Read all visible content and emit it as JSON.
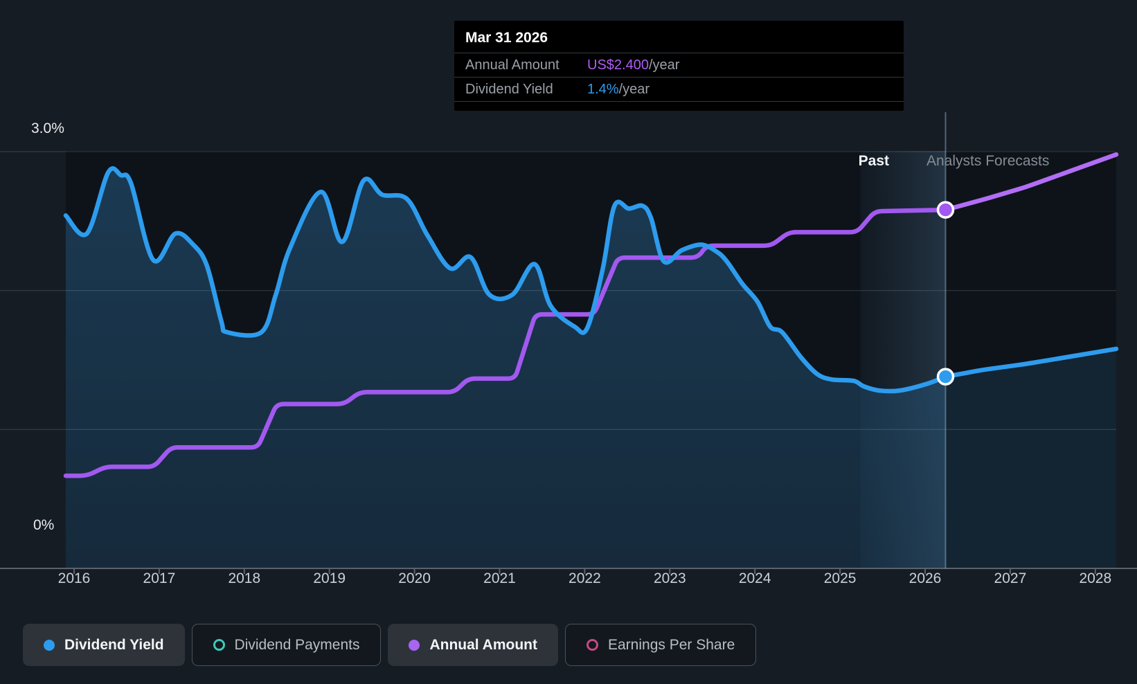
{
  "tooltip": {
    "date": "Mar 31 2026",
    "rows": [
      {
        "label": "Annual Amount",
        "value": "US$2.400",
        "suffix": "/year",
        "color": "#b05df5"
      },
      {
        "label": "Dividend Yield",
        "value": "1.4%",
        "suffix": "/year",
        "color": "#2d9cee"
      }
    ]
  },
  "annotations": {
    "past": "Past",
    "forecast": "Analysts Forecasts"
  },
  "y_axis": {
    "top_label": "3.0%",
    "zero_label": "0%"
  },
  "x_axis": {
    "years": [
      "2016",
      "2017",
      "2018",
      "2019",
      "2020",
      "2021",
      "2022",
      "2023",
      "2024",
      "2025",
      "2026",
      "2027",
      "2028"
    ]
  },
  "legend": [
    {
      "label": "Dividend Yield",
      "marker": "dot",
      "color": "#2d9cee",
      "active": true
    },
    {
      "label": "Dividend Payments",
      "marker": "ring",
      "color": "#3ec9b8",
      "active": false
    },
    {
      "label": "Annual Amount",
      "marker": "dot",
      "color": "#a765f2",
      "active": true
    },
    {
      "label": "Earnings Per Share",
      "marker": "ring",
      "color": "#c44a82",
      "active": false
    }
  ],
  "colors": {
    "yield_line": "#2d9cee",
    "amount_line": "#a259f0",
    "page_bg": "#161c24",
    "plot_bg": "#0e1319",
    "tooltip_bg": "#000000"
  },
  "chart_data": {
    "type": "line",
    "x_range": [
      2015.9,
      2028.25
    ],
    "y_left": {
      "unit": "%",
      "min": 0,
      "max": 3,
      "gridlines": [
        3.0,
        2.0,
        1.0,
        0.0
      ]
    },
    "amount_unit": "US$/year",
    "past_forecast_boundary": 2026.24,
    "past_band": [
      2025.24,
      2026.24
    ],
    "legend_position": "bottom",
    "series": [
      {
        "name": "Dividend Yield",
        "unit": "%",
        "color": "#2d9cee",
        "past": [
          [
            2015.9,
            2.54
          ],
          [
            2016.15,
            2.41
          ],
          [
            2016.4,
            2.85
          ],
          [
            2016.55,
            2.83
          ],
          [
            2016.67,
            2.77
          ],
          [
            2016.93,
            2.22
          ],
          [
            2017.19,
            2.41
          ],
          [
            2017.4,
            2.33
          ],
          [
            2017.56,
            2.18
          ],
          [
            2017.73,
            1.78
          ],
          [
            2017.8,
            1.7
          ],
          [
            2018.2,
            1.7
          ],
          [
            2018.37,
            1.97
          ],
          [
            2018.54,
            2.31
          ],
          [
            2018.9,
            2.71
          ],
          [
            2019.15,
            2.35
          ],
          [
            2019.4,
            2.79
          ],
          [
            2019.62,
            2.69
          ],
          [
            2019.91,
            2.66
          ],
          [
            2020.15,
            2.4
          ],
          [
            2020.42,
            2.16
          ],
          [
            2020.66,
            2.24
          ],
          [
            2020.88,
            1.97
          ],
          [
            2021.15,
            1.97
          ],
          [
            2021.41,
            2.19
          ],
          [
            2021.6,
            1.89
          ],
          [
            2021.88,
            1.74
          ],
          [
            2022.03,
            1.73
          ],
          [
            2022.21,
            2.15
          ],
          [
            2022.35,
            2.61
          ],
          [
            2022.52,
            2.59
          ],
          [
            2022.68,
            2.61
          ],
          [
            2022.78,
            2.52
          ],
          [
            2022.93,
            2.21
          ],
          [
            2023.14,
            2.29
          ],
          [
            2023.37,
            2.33
          ],
          [
            2023.55,
            2.28
          ],
          [
            2023.67,
            2.21
          ],
          [
            2023.85,
            2.05
          ],
          [
            2024.03,
            1.92
          ],
          [
            2024.18,
            1.74
          ],
          [
            2024.32,
            1.7
          ],
          [
            2024.54,
            1.52
          ],
          [
            2024.73,
            1.4
          ],
          [
            2024.9,
            1.36
          ],
          [
            2025.16,
            1.35
          ],
          [
            2025.28,
            1.31
          ],
          [
            2025.46,
            1.28
          ],
          [
            2025.7,
            1.28
          ],
          [
            2026.03,
            1.33
          ],
          [
            2026.24,
            1.38
          ]
        ],
        "forecast": [
          [
            2026.24,
            1.38
          ],
          [
            2026.69,
            1.43
          ],
          [
            2027.17,
            1.47
          ],
          [
            2027.66,
            1.52
          ],
          [
            2028.25,
            1.58
          ]
        ]
      },
      {
        "name": "Annual Amount",
        "unit": "US$",
        "color": "#a259f0",
        "past": [
          [
            2015.9,
            0.62
          ],
          [
            2016.15,
            0.62
          ],
          [
            2016.37,
            0.68
          ],
          [
            2016.94,
            0.68
          ],
          [
            2017.14,
            0.81
          ],
          [
            2018.16,
            0.81
          ],
          [
            2018.38,
            1.1
          ],
          [
            2019.17,
            1.1
          ],
          [
            2019.36,
            1.18
          ],
          [
            2020.47,
            1.18
          ],
          [
            2020.63,
            1.27
          ],
          [
            2021.18,
            1.27
          ],
          [
            2021.42,
            1.7
          ],
          [
            2022.11,
            1.7
          ],
          [
            2022.39,
            2.08
          ],
          [
            2023.33,
            2.08
          ],
          [
            2023.43,
            2.16
          ],
          [
            2024.19,
            2.16
          ],
          [
            2024.4,
            2.25
          ],
          [
            2025.2,
            2.25
          ],
          [
            2025.41,
            2.39
          ],
          [
            2026.24,
            2.4
          ]
        ],
        "forecast": [
          [
            2026.24,
            2.4
          ],
          [
            2026.69,
            2.47
          ],
          [
            2027.17,
            2.55
          ],
          [
            2027.66,
            2.65
          ],
          [
            2028.25,
            2.77
          ]
        ]
      }
    ],
    "markers": [
      {
        "series": "Annual Amount",
        "x": 2026.24,
        "value": 2.4,
        "display": "US$2.400/year"
      },
      {
        "series": "Dividend Yield",
        "x": 2026.24,
        "value": 1.38,
        "display": "1.4%/year"
      }
    ]
  }
}
